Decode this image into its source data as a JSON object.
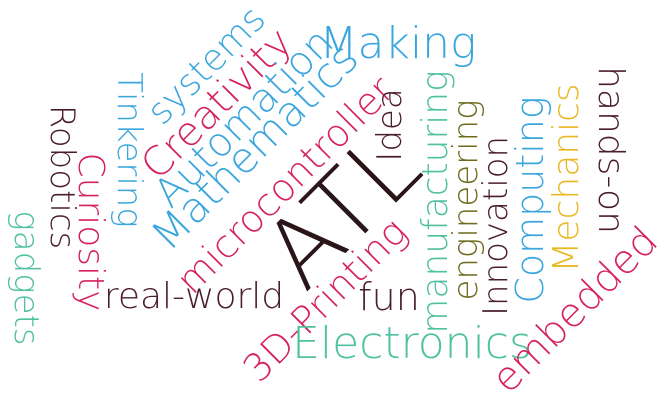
{
  "words": [
    {
      "text": "ATL",
      "color": "#2a1519"
    },
    {
      "text": "Making",
      "color": "#3aa6dd"
    },
    {
      "text": "systems",
      "color": "#3aa6dd"
    },
    {
      "text": "Tinkering",
      "color": "#3aa6dd"
    },
    {
      "text": "Creativity",
      "color": "#d6215f"
    },
    {
      "text": "Automation",
      "color": "#3aa6dd"
    },
    {
      "text": "Mathematics",
      "color": "#3aa6dd"
    },
    {
      "text": "microcontroller",
      "color": "#d6215f"
    },
    {
      "text": "Idea",
      "color": "#4a1d2a"
    },
    {
      "text": "manufacturing",
      "color": "#4fc0a0"
    },
    {
      "text": "engineering",
      "color": "#6e6a1e"
    },
    {
      "text": "Innovation",
      "color": "#4a1d2a"
    },
    {
      "text": "Computing",
      "color": "#3aa6dd"
    },
    {
      "text": "Mechanics",
      "color": "#e8b823"
    },
    {
      "text": "hands-on",
      "color": "#4a1d2a"
    },
    {
      "text": "Robotics",
      "color": "#4a1d2a"
    },
    {
      "text": "Curiosity",
      "color": "#d6215f"
    },
    {
      "text": "gadgets",
      "color": "#4fc0a0"
    },
    {
      "text": "real-world",
      "color": "#4a1d2a"
    },
    {
      "text": "3D-Printing",
      "color": "#d6215f"
    },
    {
      "text": "fun",
      "color": "#4a1d2a"
    },
    {
      "text": "Electronics",
      "color": "#4fc0a0"
    },
    {
      "text": "embedded",
      "color": "#d6215f"
    }
  ]
}
